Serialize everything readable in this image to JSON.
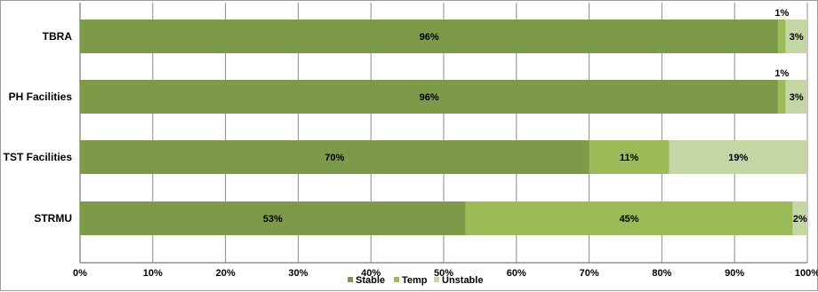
{
  "chart_data": {
    "type": "bar",
    "orientation": "horizontal",
    "stacked": true,
    "categories": [
      "TBRA",
      "PH Facilities",
      "TST Facilities",
      "STRMU"
    ],
    "series": [
      {
        "name": "Stable",
        "values": [
          96,
          96,
          70,
          53
        ],
        "labels": [
          "96%",
          "96%",
          "70%",
          "53%"
        ],
        "color": "#7d9a48"
      },
      {
        "name": "Temp",
        "values": [
          1,
          1,
          11,
          45
        ],
        "labels": [
          "1%",
          "1%",
          "11%",
          "45%"
        ],
        "color": "#9bbb59"
      },
      {
        "name": "Unstable",
        "values": [
          3,
          3,
          19,
          2
        ],
        "labels": [
          "3%",
          "3%",
          "19%",
          "2%"
        ],
        "color": "#c5d6a5"
      }
    ],
    "xlim": [
      0,
      100
    ],
    "x_ticks": [
      "0%",
      "10%",
      "20%",
      "30%",
      "40%",
      "50%",
      "60%",
      "70%",
      "80%",
      "90%",
      "100%"
    ],
    "grid": "vertical",
    "legend_position": "bottom"
  }
}
